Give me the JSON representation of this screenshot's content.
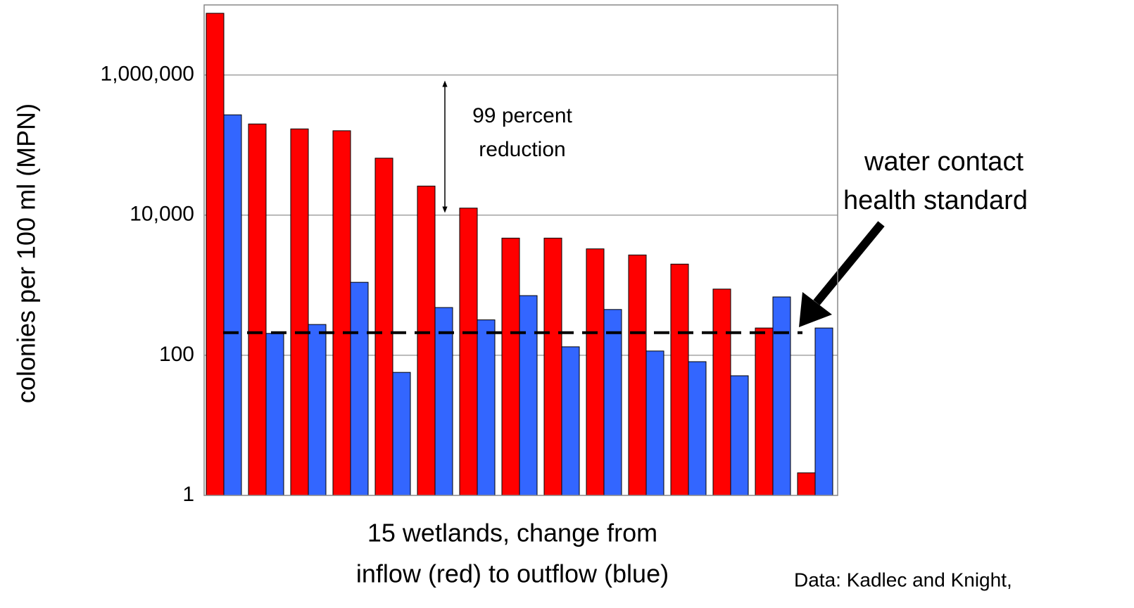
{
  "chart_data": {
    "type": "bar",
    "log_scale": true,
    "grid": true,
    "ylabel": "colonies per 100 ml (MPN)",
    "xlabel": [
      "15 wetlands, change from",
      "inflow (red) to outflow (blue)"
    ],
    "annotations": {
      "reduction": [
        "99 percent",
        "reduction"
      ],
      "standard": [
        "water contact",
        "health standard"
      ],
      "source": "Data: Kadlec and Knight,"
    },
    "categories": [
      null,
      null,
      null,
      null,
      null,
      null,
      null,
      null,
      null,
      null,
      null,
      null,
      null,
      null,
      null
    ],
    "series": [
      {
        "color": "#ff0000",
        "values": [
          7600000,
          200000,
          170000,
          160000,
          65000,
          26000,
          12600,
          4700,
          4700,
          3300,
          2700,
          2000,
          880,
          245,
          2.1
        ]
      },
      {
        "color": "#3366ff",
        "values": [
          270000,
          205,
          275,
          1100,
          57,
          480,
          320,
          710,
          132,
          450,
          115,
          81,
          51,
          680,
          245
        ]
      }
    ],
    "reference_line": {
      "value": 210
    },
    "ylim": [
      1,
      10000000
    ],
    "yticks": [
      1,
      100,
      {
        "value": 10000,
        "label": "10,000"
      },
      {
        "value": 1000000,
        "label": "1,000,000"
      }
    ]
  }
}
